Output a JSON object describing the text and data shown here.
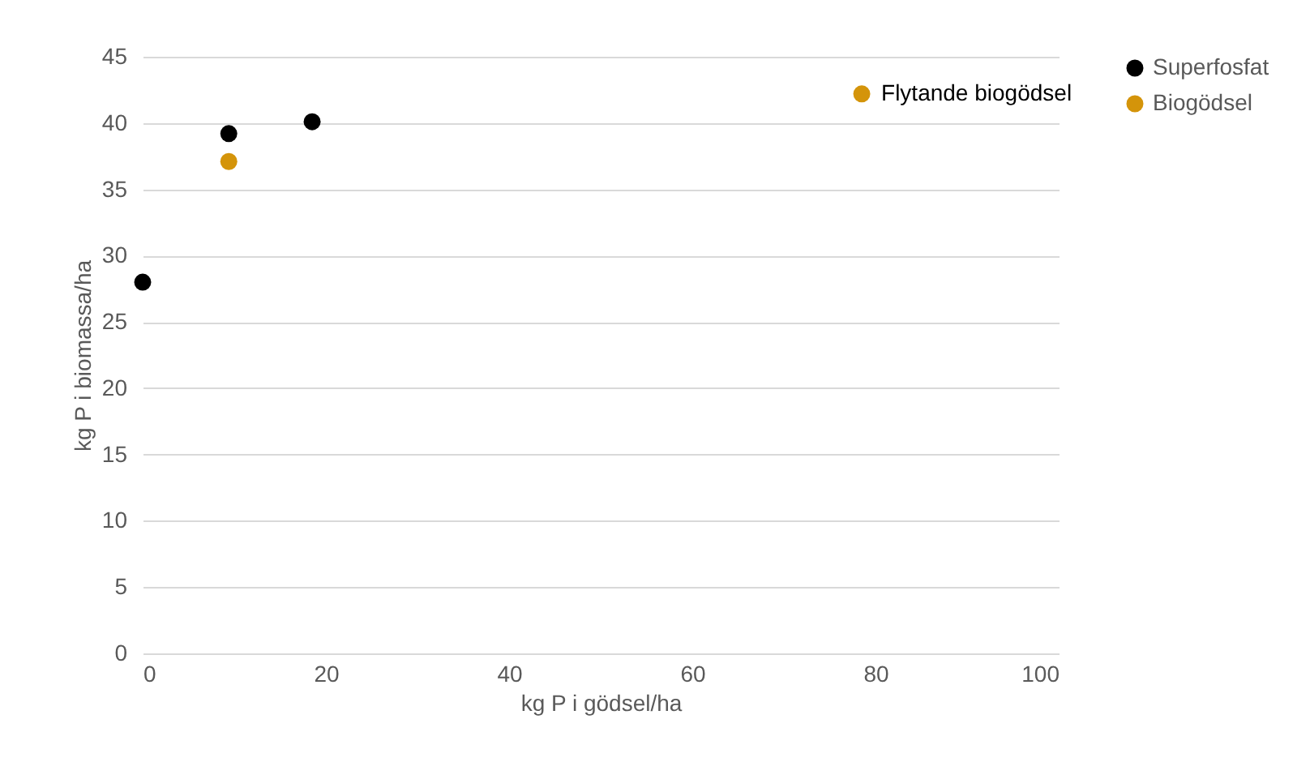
{
  "chart_data": {
    "type": "scatter",
    "xlabel": "kg P i gödsel/ha",
    "ylabel": "kg P i biomassa/ha",
    "series": [
      {
        "name": "Superfosfat",
        "color": "#000000",
        "x": [
          0,
          9.4,
          18.5
        ],
        "values": [
          28,
          39.2,
          40.1
        ]
      },
      {
        "name": "Biogödsel",
        "color": "#d4940a",
        "x": [
          9.4,
          78.5
        ],
        "values": [
          37.1,
          42.2
        ]
      }
    ],
    "annotations": [
      {
        "text": "Flytande biogödsel",
        "x": 78.5,
        "y": 42.2
      }
    ],
    "xlim": [
      0,
      100
    ],
    "xticks": [
      0,
      20,
      40,
      60,
      80,
      100
    ],
    "ylim": [
      0,
      45
    ],
    "yticks": [
      0,
      5,
      10,
      15,
      20,
      25,
      30,
      35,
      40,
      45
    ],
    "grid": "y",
    "legend": "right",
    "marker": "circle"
  }
}
